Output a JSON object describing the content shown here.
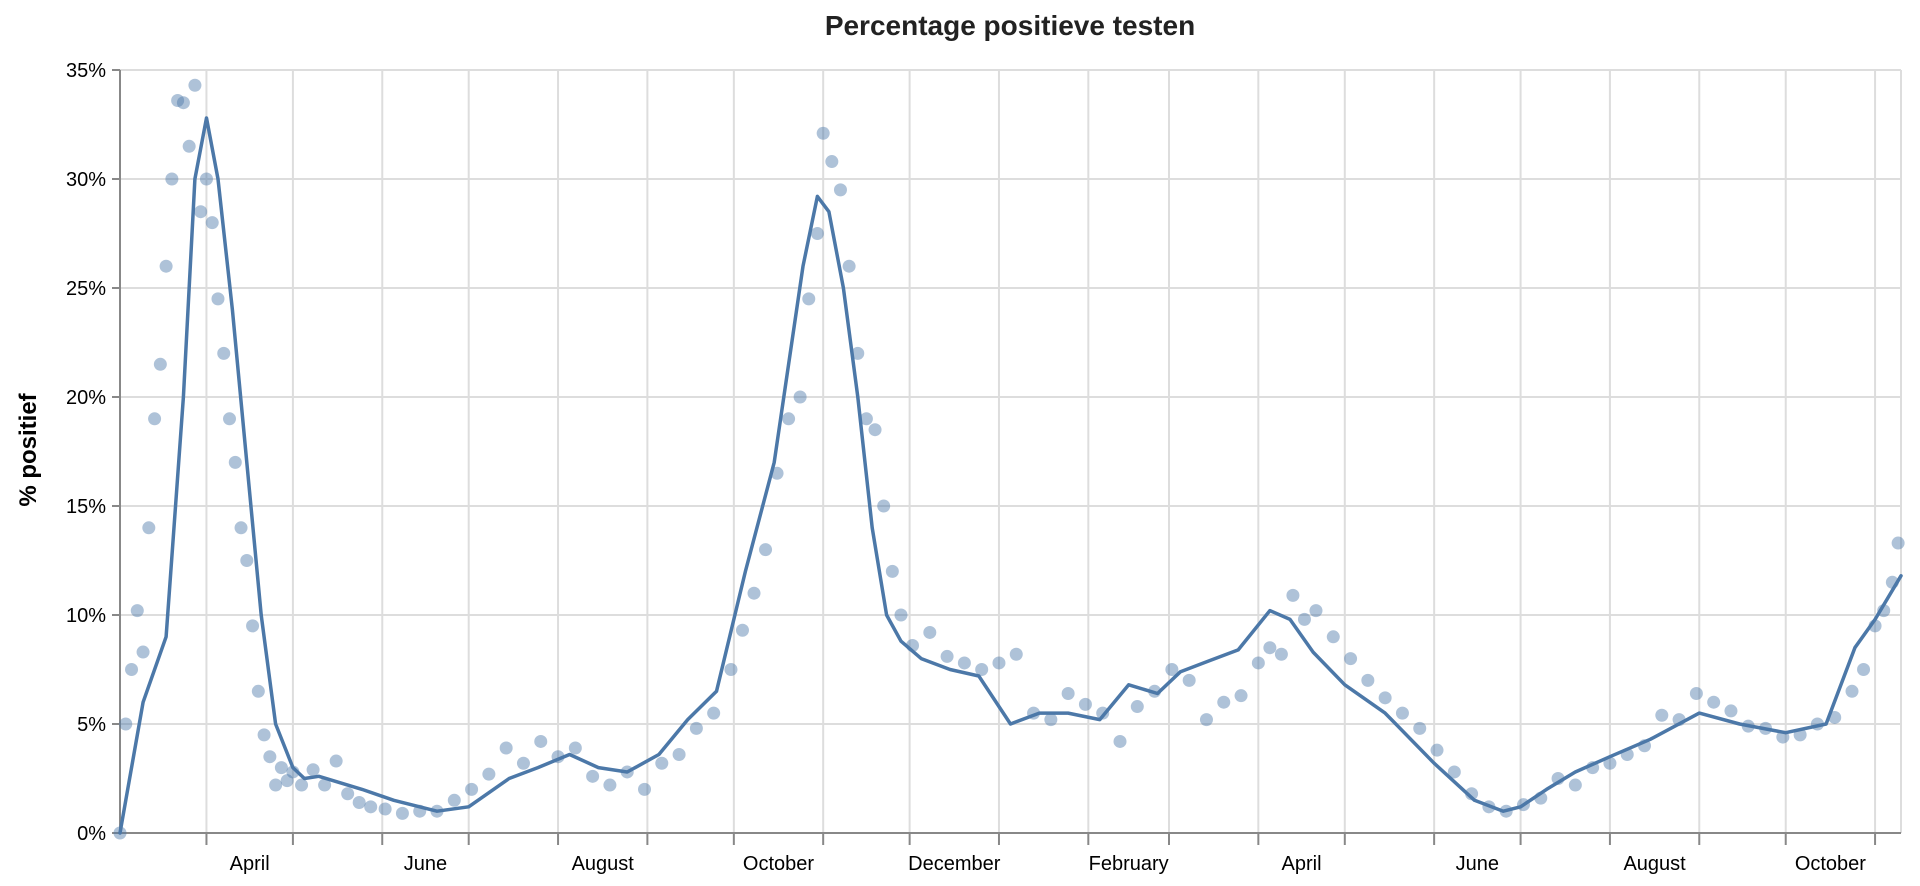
{
  "chart_data": {
    "type": "line",
    "title": "Percentage positieve testen",
    "xlabel": "",
    "ylabel": "% positief",
    "ylim": [
      0,
      35
    ],
    "grid": true,
    "y_ticks": [
      0,
      5,
      10,
      15,
      20,
      25,
      30,
      35
    ],
    "y_tick_labels": [
      "0%",
      "5%",
      "10%",
      "15%",
      "20%",
      "25%",
      "30%",
      "35%"
    ],
    "x_tick_labels": [
      "April",
      "June",
      "August",
      "October",
      "December",
      "February",
      "April",
      "June",
      "August",
      "October"
    ],
    "x_tick_dates": [
      "2020-04-01",
      "2020-06-01",
      "2020-08-01",
      "2020-10-01",
      "2020-12-01",
      "2021-02-01",
      "2021-04-01",
      "2021-06-01",
      "2021-08-01",
      "2021-10-01"
    ],
    "x_range": [
      "2020-03-02",
      "2021-11-10"
    ],
    "colors": {
      "series": "#4c78a8",
      "grid": "#dddddd",
      "axis": "#888888"
    },
    "series": [
      {
        "mark": "line",
        "x": [
          "2020-03-02",
          "2020-03-10",
          "2020-03-18",
          "2020-03-24",
          "2020-03-28",
          "2020-04-01",
          "2020-04-05",
          "2020-04-10",
          "2020-04-15",
          "2020-04-20",
          "2020-04-25",
          "2020-05-01",
          "2020-05-05",
          "2020-05-10",
          "2020-05-15",
          "2020-05-25",
          "2020-06-05",
          "2020-06-20",
          "2020-07-01",
          "2020-07-15",
          "2020-07-25",
          "2020-08-05",
          "2020-08-15",
          "2020-08-25",
          "2020-09-05",
          "2020-09-15",
          "2020-09-25",
          "2020-10-05",
          "2020-10-15",
          "2020-10-25",
          "2020-10-30",
          "2020-11-03",
          "2020-11-08",
          "2020-11-13",
          "2020-11-18",
          "2020-11-23",
          "2020-11-28",
          "2020-12-05",
          "2020-12-15",
          "2020-12-25",
          "2021-01-05",
          "2021-01-15",
          "2021-01-25",
          "2021-02-05",
          "2021-02-15",
          "2021-02-25",
          "2021-03-05",
          "2021-03-15",
          "2021-03-25",
          "2021-04-05",
          "2021-04-12",
          "2021-04-20",
          "2021-05-01",
          "2021-05-15",
          "2021-06-01",
          "2021-06-15",
          "2021-06-25",
          "2021-07-01",
          "2021-07-10",
          "2021-07-20",
          "2021-08-01",
          "2021-08-15",
          "2021-09-01",
          "2021-09-15",
          "2021-10-01",
          "2021-10-15",
          "2021-10-25",
          "2021-11-01",
          "2021-11-10"
        ],
        "y": [
          0.0,
          6.0,
          9.0,
          20.0,
          30.0,
          32.8,
          30.0,
          24.0,
          17.0,
          10.0,
          5.0,
          3.0,
          2.5,
          2.6,
          2.4,
          2.0,
          1.5,
          1.0,
          1.2,
          2.5,
          3.0,
          3.6,
          3.0,
          2.8,
          3.6,
          5.2,
          6.5,
          12.0,
          17.0,
          26.0,
          29.2,
          28.5,
          25.0,
          20.0,
          14.0,
          10.0,
          8.8,
          8.0,
          7.5,
          7.2,
          5.0,
          5.5,
          5.5,
          5.2,
          6.8,
          6.4,
          7.4,
          7.9,
          8.4,
          10.2,
          9.8,
          8.3,
          6.8,
          5.5,
          3.2,
          1.5,
          1.0,
          1.2,
          2.0,
          2.8,
          3.5,
          4.3,
          5.5,
          5.0,
          4.6,
          5.0,
          8.5,
          9.8,
          11.8
        ]
      },
      {
        "mark": "scatter",
        "x": [
          "2020-03-02",
          "2020-03-04",
          "2020-03-06",
          "2020-03-08",
          "2020-03-10",
          "2020-03-12",
          "2020-03-14",
          "2020-03-16",
          "2020-03-18",
          "2020-03-20",
          "2020-03-22",
          "2020-03-24",
          "2020-03-26",
          "2020-03-28",
          "2020-03-30",
          "2020-04-01",
          "2020-04-03",
          "2020-04-05",
          "2020-04-07",
          "2020-04-09",
          "2020-04-11",
          "2020-04-13",
          "2020-04-15",
          "2020-04-17",
          "2020-04-19",
          "2020-04-21",
          "2020-04-23",
          "2020-04-25",
          "2020-04-27",
          "2020-04-29",
          "2020-05-01",
          "2020-05-04",
          "2020-05-08",
          "2020-05-12",
          "2020-05-16",
          "2020-05-20",
          "2020-05-24",
          "2020-05-28",
          "2020-06-02",
          "2020-06-08",
          "2020-06-14",
          "2020-06-20",
          "2020-06-26",
          "2020-07-02",
          "2020-07-08",
          "2020-07-14",
          "2020-07-20",
          "2020-07-26",
          "2020-08-01",
          "2020-08-07",
          "2020-08-13",
          "2020-08-19",
          "2020-08-25",
          "2020-08-31",
          "2020-09-06",
          "2020-09-12",
          "2020-09-18",
          "2020-09-24",
          "2020-09-30",
          "2020-10-04",
          "2020-10-08",
          "2020-10-12",
          "2020-10-16",
          "2020-10-20",
          "2020-10-24",
          "2020-10-27",
          "2020-10-30",
          "2020-11-01",
          "2020-11-04",
          "2020-11-07",
          "2020-11-10",
          "2020-11-13",
          "2020-11-16",
          "2020-11-19",
          "2020-11-22",
          "2020-11-25",
          "2020-11-28",
          "2020-12-02",
          "2020-12-08",
          "2020-12-14",
          "2020-12-20",
          "2020-12-26",
          "2021-01-01",
          "2021-01-07",
          "2021-01-13",
          "2021-01-19",
          "2021-01-25",
          "2021-01-31",
          "2021-02-06",
          "2021-02-12",
          "2021-02-18",
          "2021-02-24",
          "2021-03-02",
          "2021-03-08",
          "2021-03-14",
          "2021-03-20",
          "2021-03-26",
          "2021-04-01",
          "2021-04-05",
          "2021-04-09",
          "2021-04-13",
          "2021-04-17",
          "2021-04-21",
          "2021-04-27",
          "2021-05-03",
          "2021-05-09",
          "2021-05-15",
          "2021-05-21",
          "2021-05-27",
          "2021-06-02",
          "2021-06-08",
          "2021-06-14",
          "2021-06-20",
          "2021-06-26",
          "2021-07-02",
          "2021-07-08",
          "2021-07-14",
          "2021-07-20",
          "2021-07-26",
          "2021-08-01",
          "2021-08-07",
          "2021-08-13",
          "2021-08-19",
          "2021-08-25",
          "2021-08-31",
          "2021-09-06",
          "2021-09-12",
          "2021-09-18",
          "2021-09-24",
          "2021-09-30",
          "2021-10-06",
          "2021-10-12",
          "2021-10-18",
          "2021-10-24",
          "2021-10-28",
          "2021-11-01",
          "2021-11-04",
          "2021-11-07",
          "2021-11-09"
        ],
        "y": [
          0.0,
          5.0,
          7.5,
          10.2,
          8.3,
          14.0,
          19.0,
          21.5,
          26.0,
          30.0,
          33.6,
          33.5,
          31.5,
          34.3,
          28.5,
          30.0,
          28.0,
          24.5,
          22.0,
          19.0,
          17.0,
          14.0,
          12.5,
          9.5,
          6.5,
          4.5,
          3.5,
          2.2,
          3.0,
          2.4,
          2.8,
          2.2,
          2.9,
          2.2,
          3.3,
          1.8,
          1.4,
          1.2,
          1.1,
          0.9,
          1.0,
          1.0,
          1.5,
          2.0,
          2.7,
          3.9,
          3.2,
          4.2,
          3.5,
          3.9,
          2.6,
          2.2,
          2.8,
          2.0,
          3.2,
          3.6,
          4.8,
          5.5,
          7.5,
          9.3,
          11.0,
          13.0,
          16.5,
          19.0,
          20.0,
          24.5,
          27.5,
          32.1,
          30.8,
          29.5,
          26.0,
          22.0,
          19.0,
          18.5,
          15.0,
          12.0,
          10.0,
          8.6,
          9.2,
          8.1,
          7.8,
          7.5,
          7.8,
          8.2,
          5.5,
          5.2,
          6.4,
          5.9,
          5.5,
          4.2,
          5.8,
          6.5,
          7.5,
          7.0,
          5.2,
          6.0,
          6.3,
          7.8,
          8.5,
          8.2,
          10.9,
          9.8,
          10.2,
          9.0,
          8.0,
          7.0,
          6.2,
          5.5,
          4.8,
          3.8,
          2.8,
          1.8,
          1.2,
          1.0,
          1.3,
          1.6,
          2.5,
          2.2,
          3.0,
          3.2,
          3.6,
          4.0,
          5.4,
          5.2,
          6.4,
          6.0,
          5.6,
          4.9,
          4.8,
          4.4,
          4.5,
          5.0,
          5.3,
          6.5,
          7.5,
          9.5,
          10.2,
          11.5,
          13.3
        ]
      }
    ]
  }
}
